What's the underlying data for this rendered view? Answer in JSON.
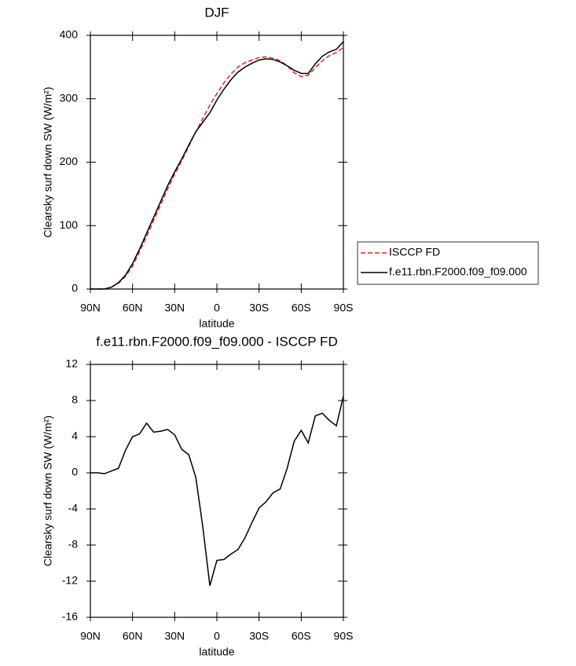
{
  "chart_data": [
    {
      "type": "line",
      "title": "DJF",
      "x_label": "latitude",
      "y_label": "Clearsky surf down SW (W/m²)",
      "x": [
        90,
        85,
        80,
        75,
        70,
        65,
        60,
        55,
        50,
        45,
        40,
        35,
        30,
        25,
        20,
        15,
        10,
        5,
        0,
        -5,
        -10,
        -15,
        -20,
        -25,
        -30,
        -35,
        -40,
        -45,
        -50,
        -55,
        -60,
        -65,
        -70,
        -75,
        -80,
        -85,
        -90
      ],
      "series": [
        {
          "name": "ISCCP FD",
          "color": "#e8201e",
          "dashed": true,
          "values": [
            0,
            0,
            0,
            3,
            9,
            20,
            36,
            59,
            83,
            108,
            133,
            158,
            181,
            202,
            225,
            248,
            269,
            290,
            308,
            325,
            339,
            350,
            357,
            361,
            365,
            366,
            364,
            360,
            352,
            341,
            335,
            337,
            349,
            360,
            368,
            373,
            381
          ]
        },
        {
          "name": "f.e11.rbn.F2000.f09_f09.000",
          "color": "#000000",
          "dashed": false,
          "values": [
            0,
            0,
            0,
            3,
            10,
            22,
            40,
            63,
            88,
            113,
            138,
            163,
            185,
            205,
            227,
            248,
            263,
            278,
            298,
            315,
            330,
            342,
            350,
            356,
            361,
            363,
            362,
            358,
            352,
            345,
            340,
            340,
            355,
            367,
            374,
            378,
            390
          ]
        }
      ],
      "xlim": [
        90,
        -90
      ],
      "xticks": [
        {
          "value": 90,
          "label": "90N"
        },
        {
          "value": 60,
          "label": "60N"
        },
        {
          "value": 30,
          "label": "30N"
        },
        0,
        {
          "value": -30,
          "label": "30S"
        },
        {
          "value": -60,
          "label": "60S"
        },
        {
          "value": -90,
          "label": "90S"
        }
      ],
      "ylim": [
        0,
        400
      ],
      "yticks": [
        0,
        100,
        200,
        300,
        400
      ],
      "legend": "right"
    },
    {
      "type": "line",
      "title": "f.e11.rbn.F2000.f09_f09.000 - ISCCP FD",
      "x_label": "latitude",
      "y_label": "Clearsky surf down SW (W/m²)",
      "x": [
        90,
        85,
        80,
        75,
        70,
        65,
        60,
        55,
        50,
        45,
        40,
        35,
        30,
        25,
        20,
        15,
        10,
        5,
        0,
        -5,
        -10,
        -15,
        -20,
        -25,
        -30,
        -35,
        -40,
        -45,
        -50,
        -55,
        -60,
        -65,
        -70,
        -75,
        -80,
        -85,
        -90
      ],
      "values": [
        0,
        0,
        -0.1,
        0.2,
        0.5,
        2.5,
        4,
        4.3,
        5.5,
        4.5,
        4.6,
        4.8,
        4.2,
        2.6,
        2,
        -0.5,
        -6,
        -12.5,
        -9.7,
        -9.6,
        -9,
        -8.5,
        -7.2,
        -5.5,
        -3.9,
        -3.2,
        -2.2,
        -1.8,
        0.5,
        3.5,
        4.7,
        3.3,
        6.3,
        6.6,
        5.8,
        5.2,
        8.5
      ],
      "color": "#000000",
      "xlim": [
        90,
        -90
      ],
      "xticks": [
        {
          "value": 90,
          "label": "90N"
        },
        {
          "value": 60,
          "label": "60N"
        },
        {
          "value": 30,
          "label": "30N"
        },
        0,
        {
          "value": -30,
          "label": "30S"
        },
        {
          "value": -60,
          "label": "60S"
        },
        {
          "value": -90,
          "label": "90S"
        }
      ],
      "ylim": [
        -16,
        12
      ],
      "yticks": [
        -16,
        -12,
        -8,
        -4,
        0,
        4,
        8,
        12
      ]
    }
  ]
}
